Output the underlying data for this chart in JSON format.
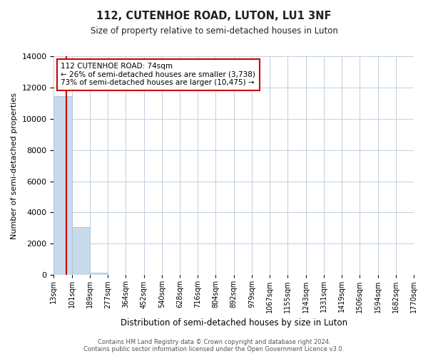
{
  "title": "112, CUTENHOE ROAD, LUTON, LU1 3NF",
  "subtitle": "Size of property relative to semi-detached houses in Luton",
  "xlabel": "Distribution of semi-detached houses by size in Luton",
  "ylabel": "Number of semi-detached properties",
  "bin_labels": [
    "13sqm",
    "101sqm",
    "189sqm",
    "277sqm",
    "364sqm",
    "452sqm",
    "540sqm",
    "628sqm",
    "716sqm",
    "804sqm",
    "892sqm",
    "979sqm",
    "1067sqm",
    "1155sqm",
    "1243sqm",
    "1331sqm",
    "1419sqm",
    "1506sqm",
    "1594sqm",
    "1682sqm",
    "1770sqm"
  ],
  "bar_values": [
    11450,
    3050,
    150,
    0,
    0,
    0,
    0,
    0,
    0,
    0,
    0,
    0,
    0,
    0,
    0,
    0,
    0,
    0,
    0,
    0
  ],
  "bar_color": "#c8daea",
  "bar_edge_color": "#a8c4d8",
  "ylim": [
    0,
    14000
  ],
  "yticks": [
    0,
    2000,
    4000,
    6000,
    8000,
    10000,
    12000,
    14000
  ],
  "property_line_color": "#cc0000",
  "annotation_line1": "112 CUTENHOE ROAD: 74sqm",
  "annotation_line2": "← 26% of semi-detached houses are smaller (3,738)",
  "annotation_line3": "73% of semi-detached houses are larger (10,475) →",
  "annotation_box_color": "#ffffff",
  "annotation_box_edge": "#cc0000",
  "footer_line1": "Contains HM Land Registry data © Crown copyright and database right 2024.",
  "footer_line2": "Contains public sector information licensed under the Open Government Licence v3.0.",
  "background_color": "#ffffff",
  "grid_color": "#c0d0e0"
}
